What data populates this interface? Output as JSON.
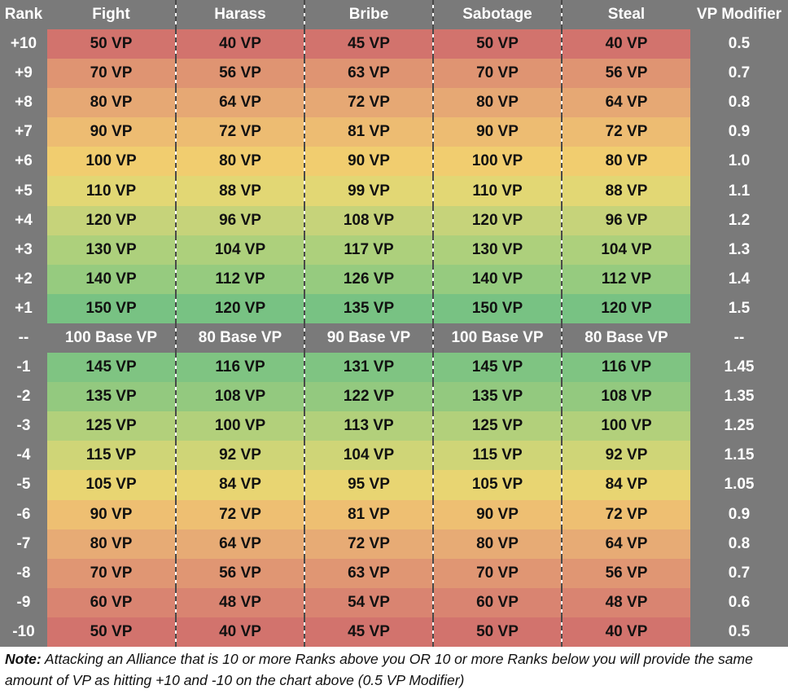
{
  "headers": {
    "rank": "Rank",
    "fight": "Fight",
    "harass": "Harass",
    "bribe": "Bribe",
    "sabotage": "Sabotage",
    "steal": "Steal",
    "modifier": "VP Modifier"
  },
  "rows": [
    {
      "rank": "+10",
      "fight": "50 VP",
      "harass": "40 VP",
      "bribe": "45 VP",
      "sabotage": "50 VP",
      "steal": "40 VP",
      "modifier": "0.5",
      "color": "#d2736d"
    },
    {
      "rank": "+9",
      "fight": "70 VP",
      "harass": "56 VP",
      "bribe": "63 VP",
      "sabotage": "70 VP",
      "steal": "56 VP",
      "modifier": "0.7",
      "color": "#df9472"
    },
    {
      "rank": "+8",
      "fight": "80 VP",
      "harass": "64 VP",
      "bribe": "72 VP",
      "sabotage": "80 VP",
      "steal": "64 VP",
      "modifier": "0.8",
      "color": "#e6a874"
    },
    {
      "rank": "+7",
      "fight": "90 VP",
      "harass": "72 VP",
      "bribe": "81 VP",
      "sabotage": "90 VP",
      "steal": "72 VP",
      "modifier": "0.9",
      "color": "#edbc72"
    },
    {
      "rank": "+6",
      "fight": "100 VP",
      "harass": "80 VP",
      "bribe": "90 VP",
      "sabotage": "100 VP",
      "steal": "80 VP",
      "modifier": "1.0",
      "color": "#f1cd6f"
    },
    {
      "rank": "+5",
      "fight": "110 VP",
      "harass": "88 VP",
      "bribe": "99 VP",
      "sabotage": "110 VP",
      "steal": "88 VP",
      "modifier": "1.1",
      "color": "#e2d774"
    },
    {
      "rank": "+4",
      "fight": "120 VP",
      "harass": "96 VP",
      "bribe": "108 VP",
      "sabotage": "120 VP",
      "steal": "96 VP",
      "modifier": "1.2",
      "color": "#c6d37a"
    },
    {
      "rank": "+3",
      "fight": "130 VP",
      "harass": "104 VP",
      "bribe": "117 VP",
      "sabotage": "130 VP",
      "steal": "104 VP",
      "modifier": "1.3",
      "color": "#add07c"
    },
    {
      "rank": "+2",
      "fight": "140 VP",
      "harass": "112 VP",
      "bribe": "126 VP",
      "sabotage": "140 VP",
      "steal": "112 VP",
      "modifier": "1.4",
      "color": "#96cb7f"
    },
    {
      "rank": "+1",
      "fight": "150 VP",
      "harass": "120 VP",
      "bribe": "135 VP",
      "sabotage": "150 VP",
      "steal": "120 VP",
      "modifier": "1.5",
      "color": "#78c283"
    }
  ],
  "base": {
    "rank": "--",
    "fight": "100 Base VP",
    "harass": "80 Base VP",
    "bribe": "90 Base VP",
    "sabotage": "100 Base VP",
    "steal": "80 Base VP",
    "modifier": "--"
  },
  "rows_below": [
    {
      "rank": "-1",
      "fight": "145 VP",
      "harass": "116 VP",
      "bribe": "131 VP",
      "sabotage": "145 VP",
      "steal": "116 VP",
      "modifier": "1.45",
      "color": "#7fc482"
    },
    {
      "rank": "-2",
      "fight": "135 VP",
      "harass": "108 VP",
      "bribe": "122 VP",
      "sabotage": "135 VP",
      "steal": "108 VP",
      "modifier": "1.35",
      "color": "#93c97f"
    },
    {
      "rank": "-3",
      "fight": "125 VP",
      "harass": "100 VP",
      "bribe": "113 VP",
      "sabotage": "125 VP",
      "steal": "100 VP",
      "modifier": "1.25",
      "color": "#b2d07b"
    },
    {
      "rank": "-4",
      "fight": "115 VP",
      "harass": "92 VP",
      "bribe": "104 VP",
      "sabotage": "115 VP",
      "steal": "92 VP",
      "modifier": "1.15",
      "color": "#cfd577"
    },
    {
      "rank": "-5",
      "fight": "105 VP",
      "harass": "84 VP",
      "bribe": "95 VP",
      "sabotage": "105 VP",
      "steal": "84 VP",
      "modifier": "1.05",
      "color": "#e8d572"
    },
    {
      "rank": "-6",
      "fight": "90 VP",
      "harass": "72 VP",
      "bribe": "81 VP",
      "sabotage": "90 VP",
      "steal": "72 VP",
      "modifier": "0.9",
      "color": "#eebf72"
    },
    {
      "rank": "-7",
      "fight": "80 VP",
      "harass": "64 VP",
      "bribe": "72 VP",
      "sabotage": "80 VP",
      "steal": "64 VP",
      "modifier": "0.8",
      "color": "#e7ab75"
    },
    {
      "rank": "-8",
      "fight": "70 VP",
      "harass": "56 VP",
      "bribe": "63 VP",
      "sabotage": "70 VP",
      "steal": "56 VP",
      "modifier": "0.7",
      "color": "#e09673"
    },
    {
      "rank": "-9",
      "fight": "60 VP",
      "harass": "48 VP",
      "bribe": "54 VP",
      "sabotage": "60 VP",
      "steal": "48 VP",
      "modifier": "0.6",
      "color": "#d98471"
    },
    {
      "rank": "-10",
      "fight": "50 VP",
      "harass": "40 VP",
      "bribe": "45 VP",
      "sabotage": "50 VP",
      "steal": "40 VP",
      "modifier": "0.5",
      "color": "#d2736d"
    }
  ],
  "note": {
    "label": "Note:",
    "text": " Attacking an Alliance that is 10 or more Ranks above you OR 10 or more Ranks below you will provide the same amount of VP as hitting +10 and -10 on the chart above (0.5 VP Modifier)"
  }
}
